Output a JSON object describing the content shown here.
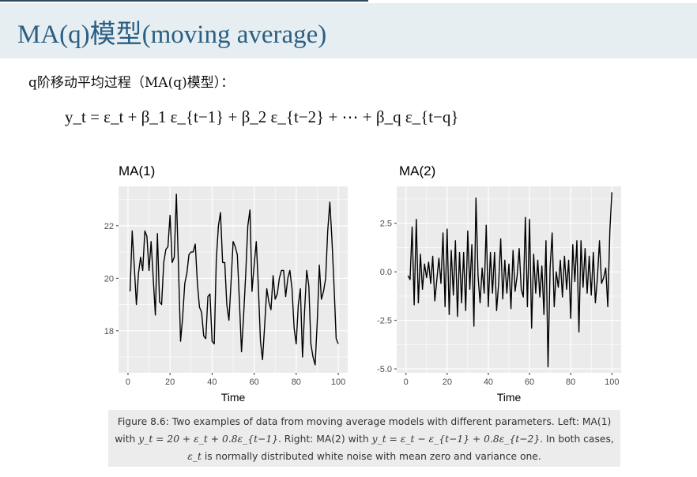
{
  "slide": {
    "title": "MA(q)模型(moving average)",
    "intro": "q阶移动平均过程（MA(q)模型）：",
    "formula": "y_t = ε_t + β_1 ε_{t−1} + β_2 ε_{t−2} + ⋯ + β_q ε_{t−q}"
  },
  "caption": {
    "part1": "Figure 8.6: Two examples of data from moving average models with different parameters. Left: MA(1) with ",
    "math1": "y_t = 20 + ε_t + 0.8ε_{t−1}",
    "part2": ". Right: MA(2) with ",
    "math2": "y_t = ε_t − ε_{t−1} + 0.8ε_{t−2}",
    "part3": ". In both cases, ",
    "math3": "ε_t",
    "part4": " is normally distributed white noise with mean zero and variance one."
  },
  "colors": {
    "title": "#2a5f84",
    "header_bg": "#e6eef1",
    "panel_bg": "#ebebeb",
    "line": "#000000"
  },
  "chart_data": [
    {
      "type": "line",
      "title": "MA(1)",
      "xlabel": "Time",
      "ylabel": "",
      "xlim": [
        0,
        100
      ],
      "ylim": [
        16.4,
        23.5
      ],
      "xticks": [
        0,
        20,
        40,
        60,
        80,
        100
      ],
      "yticks": [
        18,
        20,
        22
      ],
      "grid": true,
      "series": [
        {
          "x": [
            1,
            2,
            3,
            4,
            5,
            6,
            7,
            8,
            9,
            10,
            11,
            12,
            13,
            14,
            15,
            16,
            17,
            18,
            19,
            20,
            21,
            22,
            23,
            24,
            25,
            26,
            27,
            28,
            29,
            30,
            31,
            32,
            33,
            34,
            35,
            36,
            37,
            38,
            39,
            40,
            41,
            42,
            43,
            44,
            45,
            46,
            47,
            48,
            49,
            50,
            51,
            52,
            53,
            54,
            55,
            56,
            57,
            58,
            59,
            60,
            61,
            62,
            63,
            64,
            65,
            66,
            67,
            68,
            69,
            70,
            71,
            72,
            73,
            74,
            75,
            76,
            77,
            78,
            79,
            80,
            81,
            82,
            83,
            84,
            85,
            86,
            87,
            88,
            89,
            90,
            91,
            92,
            93,
            94,
            95,
            96,
            97,
            98,
            99,
            100
          ],
          "values": [
            19.5,
            21.8,
            20.4,
            19.0,
            20.2,
            20.8,
            20.3,
            21.8,
            21.6,
            20.3,
            21.4,
            20.0,
            18.6,
            21.7,
            19.1,
            19.0,
            20.6,
            21.1,
            21.2,
            22.4,
            20.6,
            20.8,
            23.2,
            20.5,
            17.6,
            18.5,
            19.8,
            20.2,
            20.9,
            21.0,
            21.0,
            21.3,
            19.8,
            18.9,
            18.7,
            17.8,
            17.7,
            19.3,
            19.4,
            17.6,
            17.5,
            20.7,
            22.0,
            22.5,
            20.6,
            20.6,
            19.0,
            18.4,
            19.8,
            21.4,
            21.2,
            20.9,
            19.1,
            17.2,
            18.6,
            20.2,
            22.0,
            22.6,
            19.5,
            20.5,
            21.4,
            19.7,
            17.6,
            16.9,
            18.2,
            19.6,
            19.1,
            18.8,
            20.1,
            19.2,
            19.4,
            20.0,
            20.3,
            20.3,
            19.3,
            20.0,
            20.3,
            19.6,
            18.1,
            17.5,
            19.0,
            19.6,
            17.0,
            18.8,
            20.3,
            19.7,
            17.5,
            17.0,
            16.7,
            18.3,
            20.5,
            19.2,
            19.5,
            20.0,
            21.8,
            22.9,
            21.5,
            19.7,
            17.7,
            17.5
          ]
        }
      ]
    },
    {
      "type": "line",
      "title": "MA(2)",
      "xlabel": "Time",
      "ylabel": "",
      "xlim": [
        0,
        100
      ],
      "ylim": [
        -5.2,
        4.4
      ],
      "xticks": [
        0,
        20,
        40,
        60,
        80,
        100
      ],
      "yticks": [
        -5.0,
        -2.5,
        0.0,
        2.5
      ],
      "ytick_labels": [
        "-5.0",
        "-2.5",
        "0.0",
        "2.5"
      ],
      "grid": true,
      "series": [
        {
          "x": [
            1,
            2,
            3,
            4,
            5,
            6,
            7,
            8,
            9,
            10,
            11,
            12,
            13,
            14,
            15,
            16,
            17,
            18,
            19,
            20,
            21,
            22,
            23,
            24,
            25,
            26,
            27,
            28,
            29,
            30,
            31,
            32,
            33,
            34,
            35,
            36,
            37,
            38,
            39,
            40,
            41,
            42,
            43,
            44,
            45,
            46,
            47,
            48,
            49,
            50,
            51,
            52,
            53,
            54,
            55,
            56,
            57,
            58,
            59,
            60,
            61,
            62,
            63,
            64,
            65,
            66,
            67,
            68,
            69,
            70,
            71,
            72,
            73,
            74,
            75,
            76,
            77,
            78,
            79,
            80,
            81,
            82,
            83,
            84,
            85,
            86,
            87,
            88,
            89,
            90,
            91,
            92,
            93,
            94,
            95,
            96,
            97,
            98,
            99,
            100
          ],
          "values": [
            -0.2,
            -0.4,
            2.3,
            -1.7,
            2.7,
            -1.6,
            0.9,
            -0.9,
            0.4,
            -0.3,
            0.5,
            -0.6,
            0.8,
            -1.5,
            -0.4,
            0.7,
            -0.6,
            2.0,
            -1.8,
            2.2,
            -2.2,
            1.1,
            -1.2,
            1.6,
            -2.3,
            1.0,
            -1.6,
            1.0,
            -2.0,
            2.1,
            -0.9,
            1.4,
            -2.8,
            3.8,
            -0.2,
            -1.6,
            0.2,
            -1.1,
            2.4,
            -1.8,
            1.0,
            -1.1,
            1.0,
            -2.0,
            -0.6,
            1.7,
            -1.4,
            0.6,
            -1.1,
            0.4,
            -1.9,
            1.1,
            -1.0,
            -0.2,
            1.2,
            -0.9,
            -1.3,
            2.8,
            -1.8,
            2.7,
            -2.9,
            0.9,
            -1.1,
            0.6,
            -1.3,
            0.3,
            -2.2,
            1.6,
            -4.9,
            0.2,
            2.0,
            -1.8,
            0.0,
            -0.8,
            0.6,
            -1.3,
            0.8,
            -0.9,
            0.6,
            -2.4,
            1.4,
            -0.5,
            1.6,
            -3.1,
            1.6,
            -0.8,
            1.2,
            -1.1,
            0.8,
            -1.2,
            1.0,
            -1.6,
            -0.3,
            1.6,
            -0.6,
            -0.3,
            0.2,
            -1.8,
            2.1,
            4.1
          ]
        }
      ]
    }
  ]
}
